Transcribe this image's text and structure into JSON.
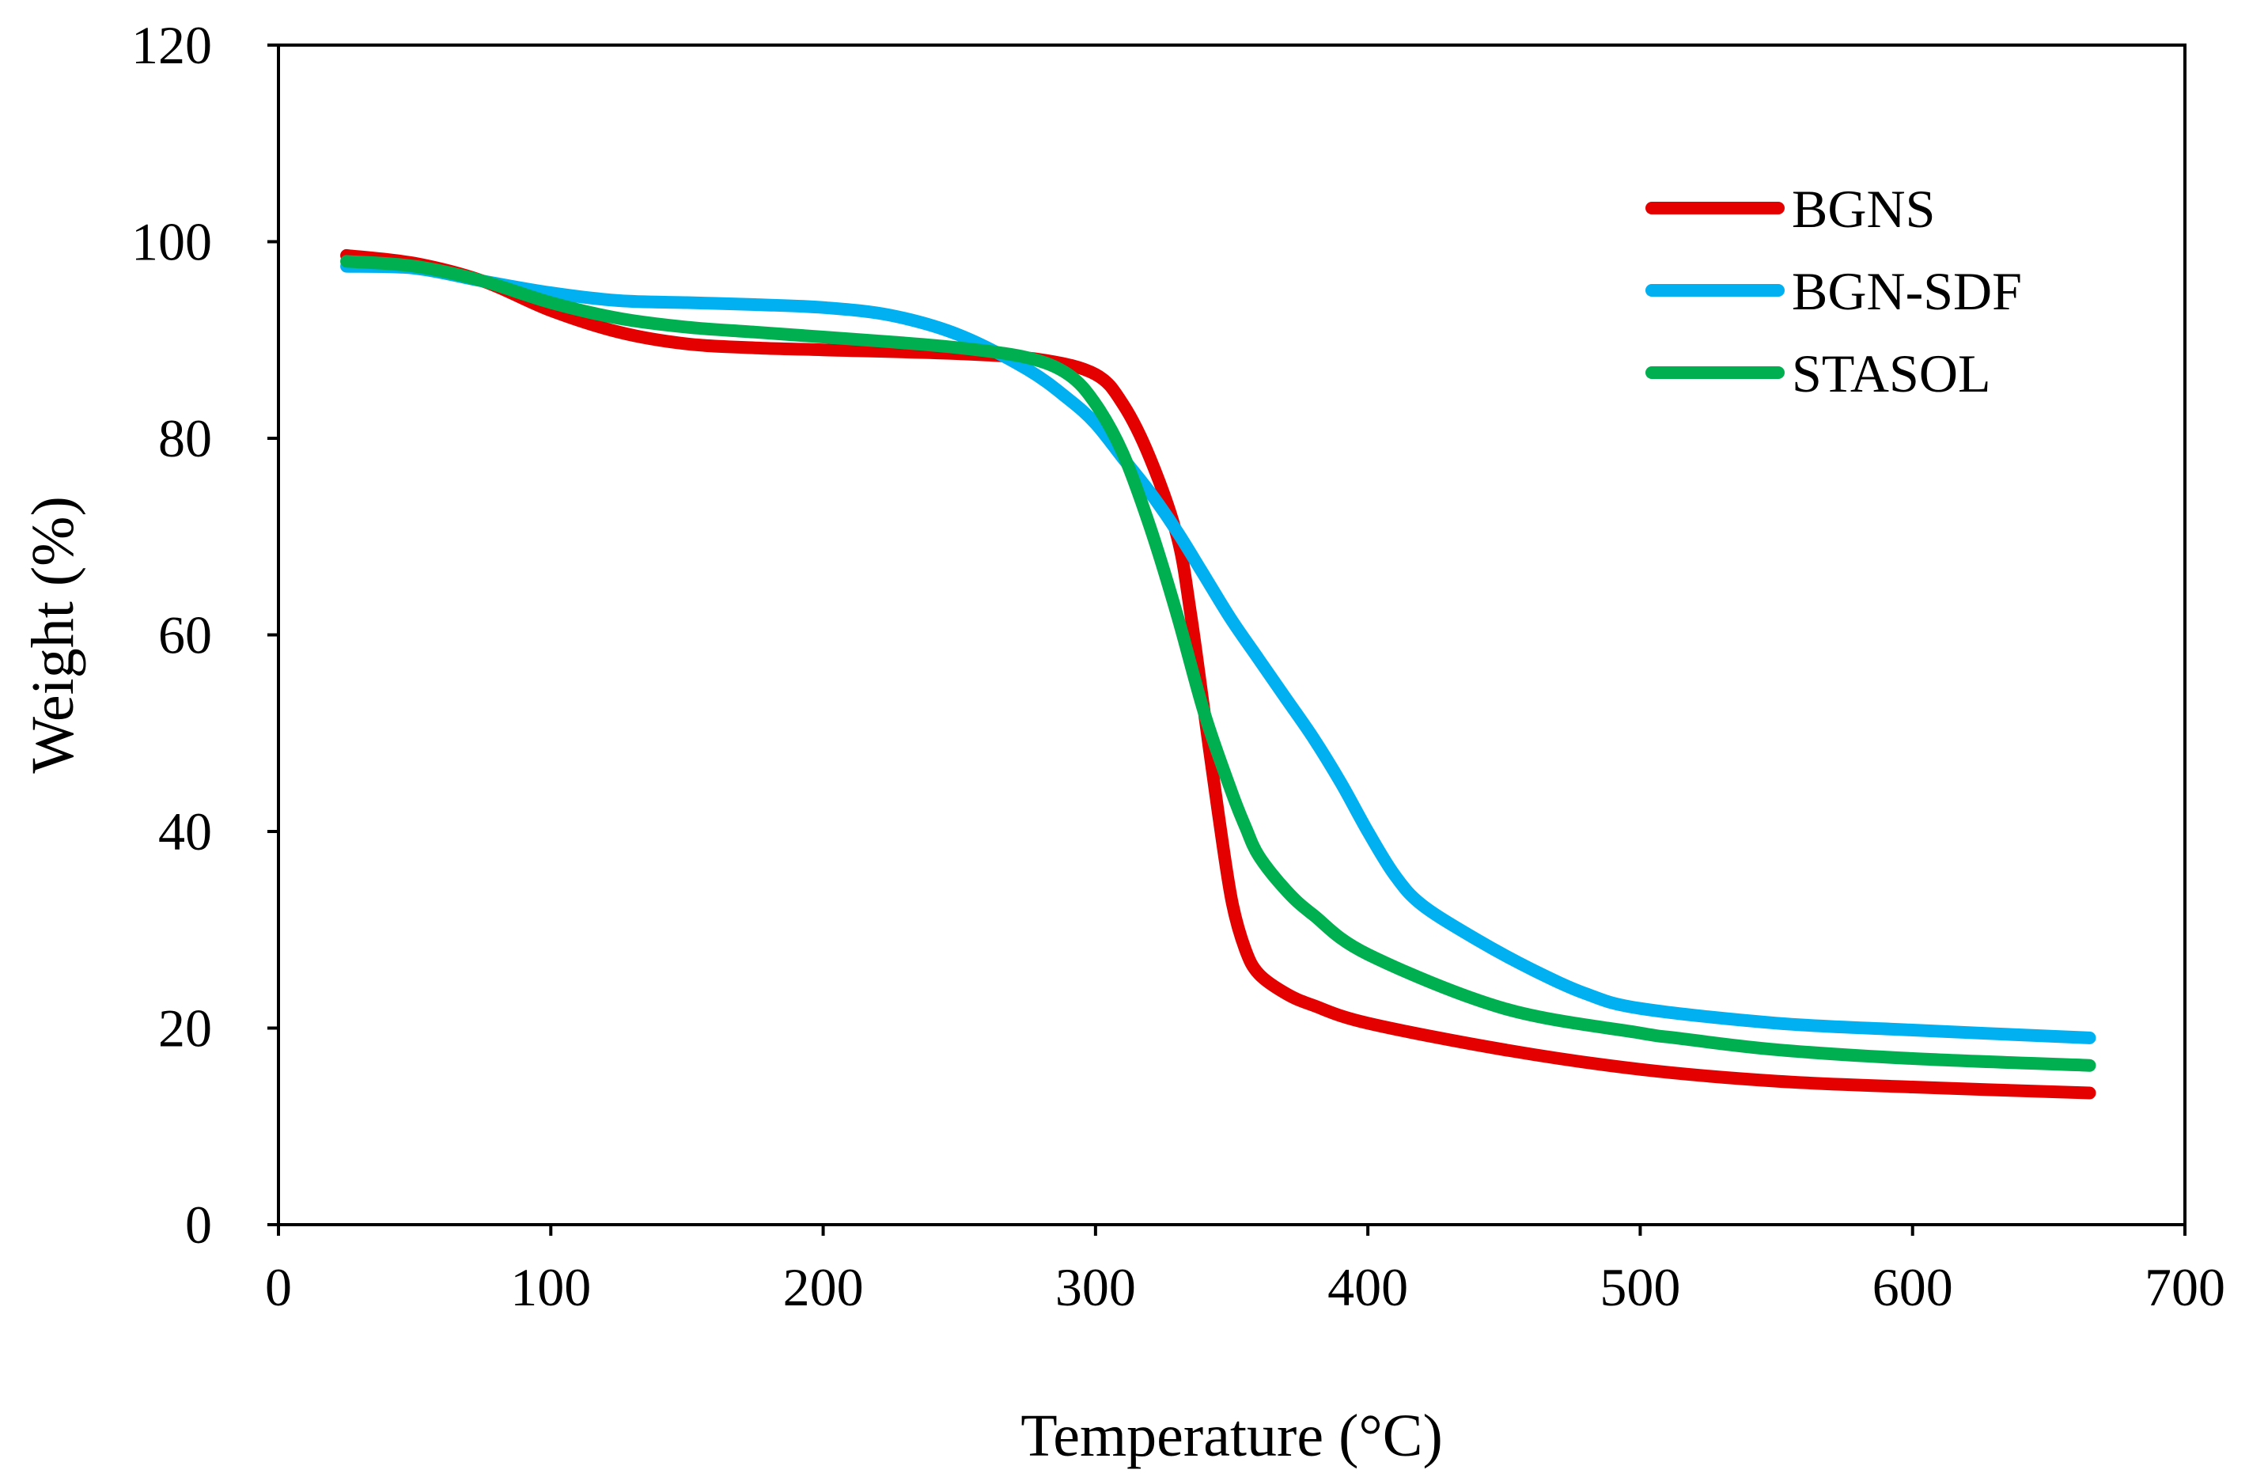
{
  "chart_data": {
    "type": "line",
    "title": "",
    "xlabel": "Temperature (°C)",
    "ylabel": "Weight (%)",
    "xlim": [
      0,
      700
    ],
    "ylim": [
      0,
      120
    ],
    "xticks": [
      0,
      100,
      200,
      300,
      400,
      500,
      600,
      700
    ],
    "yticks": [
      0,
      20,
      40,
      60,
      80,
      100,
      120
    ],
    "xtick_labels": [
      "0",
      "100",
      "200",
      "300",
      "400",
      "500",
      "600",
      "700"
    ],
    "ytick_labels": [
      "0",
      "20",
      "40",
      "60",
      "80",
      "100",
      "120"
    ],
    "grid": false,
    "legend_position": "top-right",
    "series": [
      {
        "name": "BGNS",
        "color": "#e50000",
        "x": [
          25,
          50,
          75,
          100,
          125,
          150,
          175,
          200,
          250,
          280,
          300,
          310,
          320,
          330,
          335,
          340,
          345,
          350,
          355,
          360,
          370,
          380,
          400,
          450,
          500,
          550,
          600,
          665
        ],
        "y": [
          98.6,
          97.8,
          96.0,
          93.0,
          90.8,
          89.6,
          89.2,
          89.0,
          88.6,
          88.0,
          86.5,
          83.5,
          78.0,
          70.0,
          62.0,
          52.0,
          42.0,
          33.0,
          28.0,
          25.5,
          23.5,
          22.3,
          20.5,
          17.8,
          15.8,
          14.6,
          14.0,
          13.4
        ]
      },
      {
        "name": "BGN-SDF",
        "color": "#00b0f0",
        "x": [
          25,
          50,
          75,
          100,
          125,
          150,
          175,
          200,
          225,
          250,
          275,
          290,
          300,
          310,
          320,
          330,
          340,
          350,
          360,
          370,
          380,
          390,
          400,
          410,
          420,
          440,
          460,
          480,
          500,
          550,
          600,
          665
        ],
        "y": [
          97.5,
          97.3,
          96.0,
          94.8,
          94.0,
          93.8,
          93.6,
          93.3,
          92.5,
          90.5,
          87.0,
          84.0,
          81.5,
          78.0,
          74.5,
          70.5,
          66.0,
          61.5,
          57.5,
          53.5,
          49.5,
          45.0,
          40.0,
          35.5,
          32.5,
          29.0,
          26.0,
          23.5,
          22.0,
          20.5,
          19.8,
          19.0
        ]
      },
      {
        "name": "STASOL",
        "color": "#00b050",
        "x": [
          25,
          50,
          75,
          100,
          125,
          150,
          175,
          200,
          225,
          250,
          275,
          290,
          300,
          310,
          320,
          330,
          340,
          350,
          355,
          360,
          370,
          380,
          400,
          450,
          500,
          513,
          550,
          600,
          665
        ],
        "y": [
          98.0,
          97.5,
          96.0,
          93.8,
          92.2,
          91.3,
          90.8,
          90.3,
          89.8,
          89.2,
          88.2,
          86.5,
          83.5,
          78.5,
          71.0,
          62.0,
          52.0,
          44.0,
          40.5,
          37.5,
          34.0,
          31.5,
          27.5,
          22.0,
          19.5,
          19.0,
          17.8,
          16.9,
          16.2
        ]
      }
    ]
  }
}
